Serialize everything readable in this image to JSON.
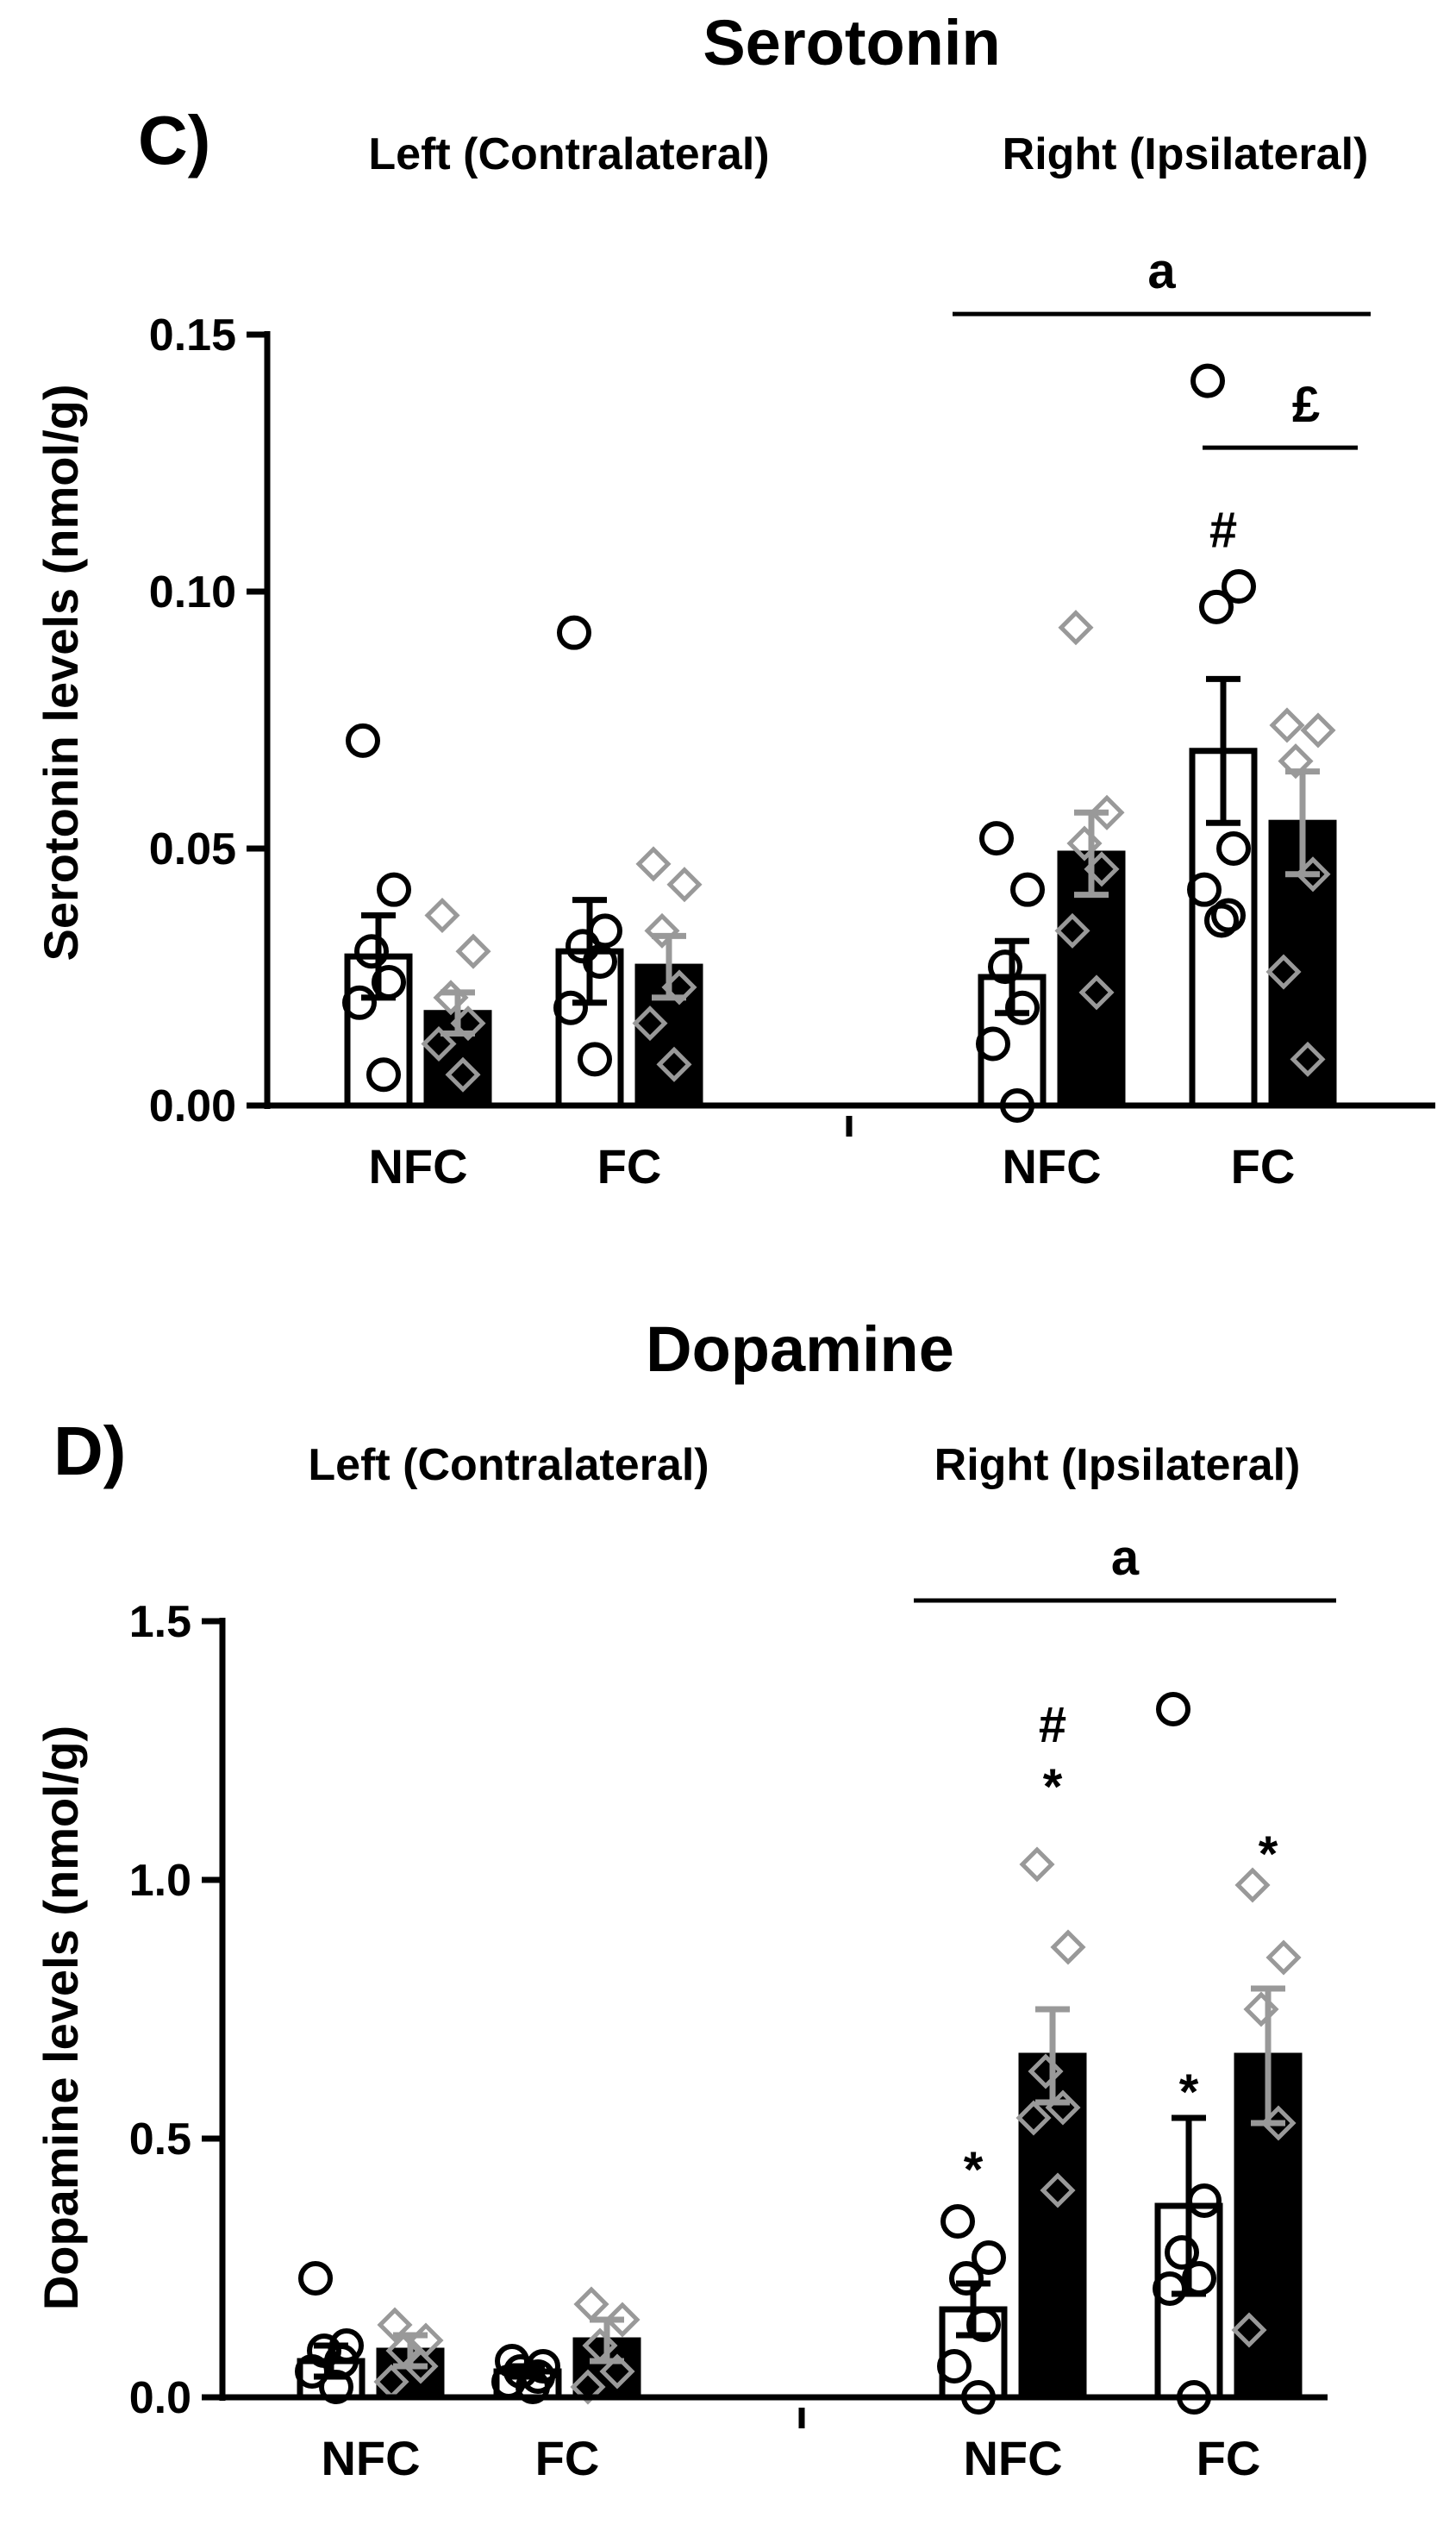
{
  "colors": {
    "ink": "#000000",
    "gray": "#999999",
    "open_bar": "#ffffff",
    "filled_bar": "#000000"
  },
  "chart_data": [
    {
      "type": "bar",
      "panel_label": "C)",
      "title": "Serotonin",
      "ylabel": "Serotonin levels  (nmol/g)",
      "ylim": [
        0,
        0.15
      ],
      "yticks": [
        "0.00",
        "0.05",
        "0.10",
        "0.15"
      ],
      "ytick_values": [
        0,
        0.05,
        0.1,
        0.15
      ],
      "groups": [
        {
          "side": "Left (Contralateral)",
          "categories": [
            "NFC",
            "FC"
          ]
        },
        {
          "side": "Right (Ipsilateral)",
          "categories": [
            "NFC",
            "FC"
          ]
        }
      ],
      "series": [
        {
          "name": "open bars (circles)",
          "style": "open",
          "marker": "circle",
          "values": [
            0.029,
            0.03,
            0.025,
            0.069
          ],
          "errors": [
            0.008,
            0.01,
            0.007,
            0.014
          ],
          "points": [
            [
              0.071,
              0.042,
              0.03,
              0.024,
              0.02,
              0.006
            ],
            [
              0.092,
              0.034,
              0.031,
              0.028,
              0.019,
              0.009
            ],
            [
              0.052,
              0.042,
              0.027,
              0.019,
              0.012,
              0.0
            ],
            [
              0.141,
              0.101,
              0.097,
              0.05,
              0.042,
              0.037,
              0.036
            ]
          ]
        },
        {
          "name": "filled bars (diamonds)",
          "style": "filled",
          "marker": "diamond",
          "values": [
            0.018,
            0.027,
            0.049,
            0.055
          ],
          "errors": [
            0.004,
            0.006,
            0.008,
            0.01
          ],
          "points": [
            [
              0.037,
              0.03,
              0.021,
              0.016,
              0.012,
              0.006
            ],
            [
              0.047,
              0.043,
              0.034,
              0.023,
              0.016,
              0.008
            ],
            [
              0.093,
              0.057,
              0.051,
              0.046,
              0.034,
              0.022
            ],
            [
              0.074,
              0.073,
              0.067,
              0.045,
              0.026,
              0.009
            ]
          ]
        }
      ],
      "annotations": [
        {
          "text": "a",
          "kind": "bracket",
          "from_group": 2,
          "to_group": 3,
          "value": 0.154
        },
        {
          "text": "£",
          "kind": "bracket",
          "from_group": 3,
          "to_group": 3,
          "value": 0.128
        },
        {
          "text": "#",
          "kind": "mark",
          "group": 3,
          "series": 0,
          "value": 0.112
        }
      ]
    },
    {
      "type": "bar",
      "panel_label": "D)",
      "title": "Dopamine",
      "ylabel": "Dopamine levels  (nmol/g)",
      "ylim": [
        0,
        1.5
      ],
      "yticks": [
        "0.0",
        "0.5",
        "1.0",
        "1.5"
      ],
      "ytick_values": [
        0,
        0.5,
        1.0,
        1.5
      ],
      "groups": [
        {
          "side": "Left (Contralateral)",
          "categories": [
            "NFC",
            "FC"
          ]
        },
        {
          "side": "Right (Ipsilateral)",
          "categories": [
            "NFC",
            "FC"
          ]
        }
      ],
      "series": [
        {
          "name": "open bars (circles)",
          "style": "open",
          "marker": "circle",
          "values": [
            0.07,
            0.05,
            0.17,
            0.37
          ],
          "errors": [
            0.03,
            0.01,
            0.05,
            0.17
          ],
          "points": [
            [
              0.23,
              0.1,
              0.09,
              0.07,
              0.05,
              0.02
            ],
            [
              0.07,
              0.06,
              0.05,
              0.04,
              0.03,
              0.02
            ],
            [
              0.34,
              0.27,
              0.23,
              0.14,
              0.06,
              0.0
            ],
            [
              1.33,
              0.38,
              0.28,
              0.23,
              0.21,
              0.0
            ]
          ]
        },
        {
          "name": "filled bars (diamonds)",
          "style": "filled",
          "marker": "diamond",
          "values": [
            0.09,
            0.11,
            0.66,
            0.66
          ],
          "errors": [
            0.03,
            0.04,
            0.09,
            0.13
          ],
          "points": [
            [
              0.14,
              0.11,
              0.09,
              0.06,
              0.03
            ],
            [
              0.18,
              0.15,
              0.1,
              0.05,
              0.02
            ],
            [
              1.03,
              0.87,
              0.63,
              0.56,
              0.54,
              0.4
            ],
            [
              0.99,
              0.85,
              0.75,
              0.53,
              0.13
            ]
          ]
        }
      ],
      "annotations": [
        {
          "text": "a",
          "kind": "bracket",
          "from_group": 2,
          "to_group": 3,
          "value": 1.54
        },
        {
          "text": "#",
          "kind": "mark",
          "group": 2,
          "series": 1,
          "value": 1.3
        },
        {
          "text": "*",
          "kind": "mark",
          "group": 2,
          "series": 1,
          "value": 1.18
        },
        {
          "text": "*",
          "kind": "mark",
          "group": 2,
          "series": 0,
          "value": 0.44
        },
        {
          "text": "*",
          "kind": "mark",
          "group": 3,
          "series": 0,
          "value": 0.59
        },
        {
          "text": "*",
          "kind": "mark",
          "group": 3,
          "series": 1,
          "value": 1.05
        }
      ]
    }
  ]
}
